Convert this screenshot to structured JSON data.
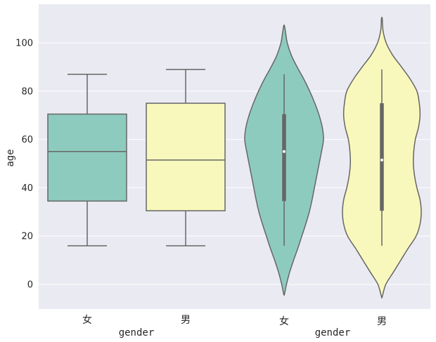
{
  "chart_data": [
    {
      "type": "box",
      "xlabel": "gender",
      "ylabel": "age",
      "categories": [
        "女",
        "男"
      ],
      "ylim": [
        -10,
        115
      ],
      "yticks": [
        0,
        20,
        40,
        60,
        80,
        100
      ],
      "grid": true,
      "colors": [
        "#8ecbbf",
        "#f8f8bc"
      ],
      "series": [
        {
          "whisker_low": 16,
          "q1": 34.5,
          "median": 55,
          "q3": 70.5,
          "whisker_high": 87
        },
        {
          "whisker_low": 16,
          "q1": 30.5,
          "median": 51.5,
          "q3": 75,
          "whisker_high": 89
        }
      ]
    },
    {
      "type": "violin",
      "xlabel": "gender",
      "ylabel": "",
      "categories": [
        "女",
        "男"
      ],
      "ylim": [
        -10,
        115
      ],
      "yticks": [
        0,
        20,
        40,
        60,
        80,
        100
      ],
      "grid": true,
      "colors": [
        "#8ecbbf",
        "#f8f8bc"
      ],
      "series": [
        {
          "min": -4,
          "max": 107,
          "whisker_low": 16,
          "q1": 34.5,
          "median": 55,
          "q3": 70.5,
          "whisker_high": 87,
          "density": [
            [
              -4,
              0.01
            ],
            [
              0,
              0.06
            ],
            [
              5,
              0.14
            ],
            [
              10,
              0.24
            ],
            [
              15,
              0.35
            ],
            [
              20,
              0.45
            ],
            [
              25,
              0.55
            ],
            [
              30,
              0.64
            ],
            [
              35,
              0.71
            ],
            [
              40,
              0.77
            ],
            [
              45,
              0.83
            ],
            [
              50,
              0.89
            ],
            [
              55,
              0.95
            ],
            [
              60,
              1.0
            ],
            [
              65,
              0.97
            ],
            [
              70,
              0.89
            ],
            [
              75,
              0.78
            ],
            [
              80,
              0.65
            ],
            [
              85,
              0.5
            ],
            [
              90,
              0.33
            ],
            [
              95,
              0.18
            ],
            [
              100,
              0.08
            ],
            [
              104,
              0.04
            ],
            [
              107,
              0.01
            ]
          ]
        },
        {
          "min": -5,
          "max": 110,
          "whisker_low": 16,
          "q1": 30.5,
          "median": 51.5,
          "q3": 75,
          "whisker_high": 89,
          "density": [
            [
              -5,
              0.01
            ],
            [
              0,
              0.1
            ],
            [
              5,
              0.29
            ],
            [
              10,
              0.48
            ],
            [
              15,
              0.67
            ],
            [
              20,
              0.87
            ],
            [
              25,
              0.97
            ],
            [
              30,
              1.0
            ],
            [
              35,
              0.97
            ],
            [
              40,
              0.89
            ],
            [
              45,
              0.83
            ],
            [
              50,
              0.8
            ],
            [
              55,
              0.81
            ],
            [
              60,
              0.85
            ],
            [
              65,
              0.93
            ],
            [
              70,
              0.97
            ],
            [
              75,
              0.95
            ],
            [
              80,
              0.89
            ],
            [
              85,
              0.72
            ],
            [
              90,
              0.5
            ],
            [
              95,
              0.27
            ],
            [
              100,
              0.11
            ],
            [
              105,
              0.03
            ],
            [
              110,
              0.01
            ]
          ]
        }
      ]
    }
  ]
}
